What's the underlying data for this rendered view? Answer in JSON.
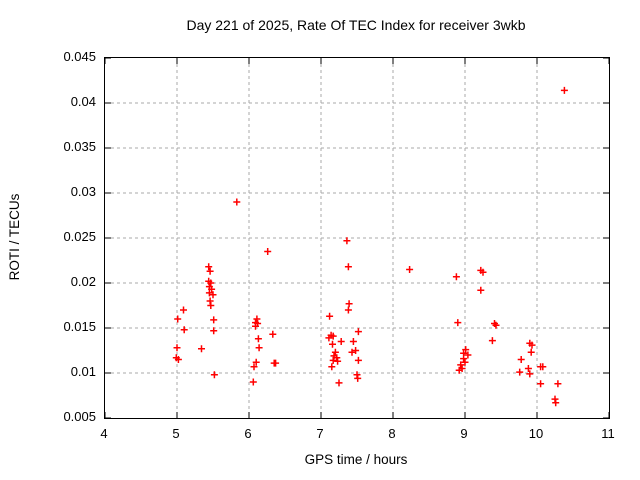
{
  "colors": {
    "background": "#ffffff",
    "frame": "#000000",
    "grid": "#a8a8a8",
    "marker": "#ff0000",
    "text": "#000000"
  },
  "chart_data": {
    "type": "scatter",
    "title": "Day 221 of 2025, Rate Of TEC Index for receiver 3wkb",
    "xlabel": "GPS time / hours",
    "ylabel": "ROTI / TECUs",
    "xlim": [
      4,
      11
    ],
    "ylim": [
      0.005,
      0.045
    ],
    "xticks": [
      4,
      5,
      6,
      7,
      8,
      9,
      10,
      11
    ],
    "xtick_labels": [
      "4",
      "5",
      "6",
      "7",
      "8",
      "9",
      "10",
      "11"
    ],
    "yticks": [
      0.005,
      0.01,
      0.015,
      0.02,
      0.025,
      0.03,
      0.035,
      0.04,
      0.045
    ],
    "ytick_labels": [
      "0.005",
      "0.01",
      "0.015",
      "0.02",
      "0.025",
      "0.03",
      "0.035",
      "0.04",
      "0.045"
    ],
    "grid": true,
    "grid_style": "dashed",
    "legend": "none",
    "marker": {
      "shape": "plus",
      "color": "#ff0000",
      "size": 7
    },
    "series": [
      {
        "name": "ROTI",
        "points": [
          [
            4.99,
            0.0117
          ],
          [
            5.02,
            0.0115
          ],
          [
            5.0,
            0.0128
          ],
          [
            5.01,
            0.016
          ],
          [
            5.09,
            0.017
          ],
          [
            5.1,
            0.0148
          ],
          [
            5.34,
            0.0127
          ],
          [
            5.44,
            0.0218
          ],
          [
            5.46,
            0.0213
          ],
          [
            5.44,
            0.0202
          ],
          [
            5.47,
            0.02
          ],
          [
            5.45,
            0.0196
          ],
          [
            5.48,
            0.0193
          ],
          [
            5.45,
            0.0189
          ],
          [
            5.5,
            0.0187
          ],
          [
            5.46,
            0.018
          ],
          [
            5.47,
            0.0175
          ],
          [
            5.51,
            0.0159
          ],
          [
            5.51,
            0.0147
          ],
          [
            5.52,
            0.0098
          ],
          [
            5.83,
            0.029
          ],
          [
            6.26,
            0.0235
          ],
          [
            6.11,
            0.016
          ],
          [
            6.09,
            0.0156
          ],
          [
            6.12,
            0.0155
          ],
          [
            6.09,
            0.0152
          ],
          [
            6.33,
            0.0143
          ],
          [
            6.13,
            0.0138
          ],
          [
            6.14,
            0.0128
          ],
          [
            6.1,
            0.0112
          ],
          [
            6.35,
            0.0111
          ],
          [
            6.37,
            0.0111
          ],
          [
            6.07,
            0.0107
          ],
          [
            6.06,
            0.009
          ],
          [
            7.36,
            0.0247
          ],
          [
            7.38,
            0.0218
          ],
          [
            7.39,
            0.0177
          ],
          [
            7.38,
            0.017
          ],
          [
            7.12,
            0.0163
          ],
          [
            7.14,
            0.0142
          ],
          [
            7.17,
            0.0141
          ],
          [
            7.11,
            0.0139
          ],
          [
            7.28,
            0.0135
          ],
          [
            7.16,
            0.0132
          ],
          [
            7.52,
            0.0146
          ],
          [
            7.45,
            0.0135
          ],
          [
            7.48,
            0.0125
          ],
          [
            7.43,
            0.0123
          ],
          [
            7.2,
            0.0123
          ],
          [
            7.18,
            0.0119
          ],
          [
            7.22,
            0.0117
          ],
          [
            7.17,
            0.0114
          ],
          [
            7.23,
            0.0113
          ],
          [
            7.52,
            0.0114
          ],
          [
            7.15,
            0.0107
          ],
          [
            7.5,
            0.0098
          ],
          [
            7.51,
            0.0094
          ],
          [
            7.25,
            0.0089
          ],
          [
            8.23,
            0.0215
          ],
          [
            8.88,
            0.0207
          ],
          [
            9.22,
            0.0214
          ],
          [
            9.25,
            0.0212
          ],
          [
            9.22,
            0.0192
          ],
          [
            8.9,
            0.0156
          ],
          [
            9.41,
            0.0155
          ],
          [
            9.43,
            0.0153
          ],
          [
            9.38,
            0.0136
          ],
          [
            9.01,
            0.0126
          ],
          [
            8.98,
            0.0122
          ],
          [
            9.04,
            0.012
          ],
          [
            8.98,
            0.0116
          ],
          [
            9.0,
            0.0112
          ],
          [
            8.94,
            0.0109
          ],
          [
            8.96,
            0.0105
          ],
          [
            8.92,
            0.0103
          ],
          [
            9.9,
            0.0133
          ],
          [
            9.93,
            0.0131
          ],
          [
            9.92,
            0.0123
          ],
          [
            9.78,
            0.0115
          ],
          [
            10.05,
            0.0107
          ],
          [
            10.08,
            0.0107
          ],
          [
            9.88,
            0.0105
          ],
          [
            9.76,
            0.0101
          ],
          [
            9.9,
            0.0099
          ],
          [
            10.05,
            0.0088
          ],
          [
            10.29,
            0.0088
          ],
          [
            10.25,
            0.0071
          ],
          [
            10.26,
            0.0067
          ],
          [
            10.38,
            0.0414
          ]
        ]
      }
    ]
  }
}
